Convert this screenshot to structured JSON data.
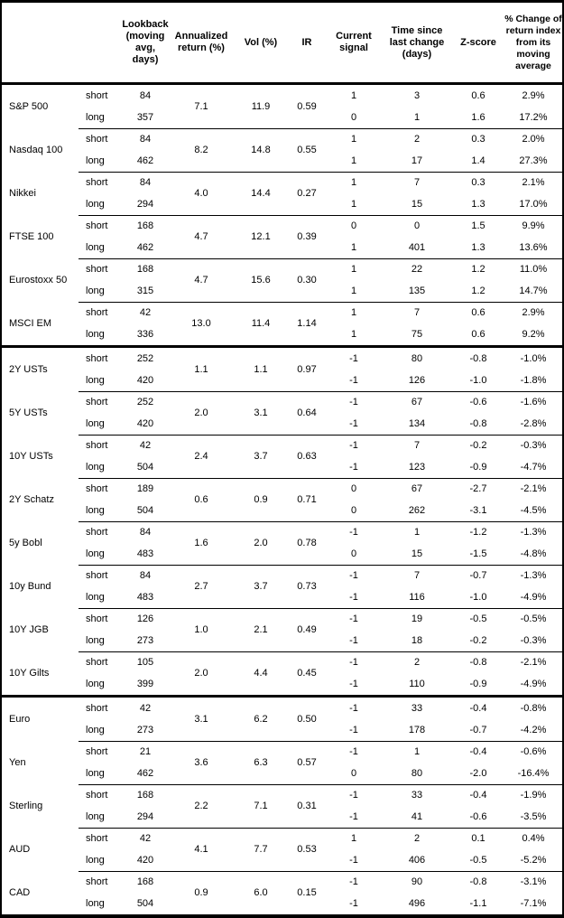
{
  "header": {
    "lookback": "Lookback (moving avg, days)",
    "annualized_return": "Annualized return (%)",
    "vol": "Vol (%)",
    "ir": "IR",
    "current_signal": "Current signal",
    "time_since": "Time since last change (days)",
    "zscore": "Z-score",
    "pct_change": "% Change of return index from its moving average"
  },
  "colors": {
    "text": "#000000",
    "background": "#ffffff",
    "lines": "#000000"
  },
  "sections": [
    {
      "assets": [
        {
          "name": "S&P 500",
          "annualized_return": "7.1",
          "vol": "11.9",
          "ir": "0.59",
          "rows": [
            {
              "period": "short",
              "lookback": "84",
              "signal": "1",
              "time_since": "3",
              "zscore": "0.6",
              "pct_change": "2.9%"
            },
            {
              "period": "long",
              "lookback": "357",
              "signal": "0",
              "time_since": "1",
              "zscore": "1.6",
              "pct_change": "17.2%"
            }
          ]
        },
        {
          "name": "Nasdaq 100",
          "annualized_return": "8.2",
          "vol": "14.8",
          "ir": "0.55",
          "rows": [
            {
              "period": "short",
              "lookback": "84",
              "signal": "1",
              "time_since": "2",
              "zscore": "0.3",
              "pct_change": "2.0%"
            },
            {
              "period": "long",
              "lookback": "462",
              "signal": "1",
              "time_since": "17",
              "zscore": "1.4",
              "pct_change": "27.3%"
            }
          ]
        },
        {
          "name": "Nikkei",
          "annualized_return": "4.0",
          "vol": "14.4",
          "ir": "0.27",
          "rows": [
            {
              "period": "short",
              "lookback": "84",
              "signal": "1",
              "time_since": "7",
              "zscore": "0.3",
              "pct_change": "2.1%"
            },
            {
              "period": "long",
              "lookback": "294",
              "signal": "1",
              "time_since": "15",
              "zscore": "1.3",
              "pct_change": "17.0%"
            }
          ]
        },
        {
          "name": "FTSE 100",
          "annualized_return": "4.7",
          "vol": "12.1",
          "ir": "0.39",
          "rows": [
            {
              "period": "short",
              "lookback": "168",
              "signal": "0",
              "time_since": "0",
              "zscore": "1.5",
              "pct_change": "9.9%"
            },
            {
              "period": "long",
              "lookback": "462",
              "signal": "1",
              "time_since": "401",
              "zscore": "1.3",
              "pct_change": "13.6%"
            }
          ]
        },
        {
          "name": "Eurostoxx 50",
          "annualized_return": "4.7",
          "vol": "15.6",
          "ir": "0.30",
          "rows": [
            {
              "period": "short",
              "lookback": "168",
              "signal": "1",
              "time_since": "22",
              "zscore": "1.2",
              "pct_change": "11.0%"
            },
            {
              "period": "long",
              "lookback": "315",
              "signal": "1",
              "time_since": "135",
              "zscore": "1.2",
              "pct_change": "14.7%"
            }
          ]
        },
        {
          "name": "MSCI EM",
          "annualized_return": "13.0",
          "vol": "11.4",
          "ir": "1.14",
          "rows": [
            {
              "period": "short",
              "lookback": "42",
              "signal": "1",
              "time_since": "7",
              "zscore": "0.6",
              "pct_change": "2.9%"
            },
            {
              "period": "long",
              "lookback": "336",
              "signal": "1",
              "time_since": "75",
              "zscore": "0.6",
              "pct_change": "9.2%"
            }
          ]
        }
      ]
    },
    {
      "assets": [
        {
          "name": "2Y USTs",
          "annualized_return": "1.1",
          "vol": "1.1",
          "ir": "0.97",
          "rows": [
            {
              "period": "short",
              "lookback": "252",
              "signal": "-1",
              "time_since": "80",
              "zscore": "-0.8",
              "pct_change": "-1.0%"
            },
            {
              "period": "long",
              "lookback": "420",
              "signal": "-1",
              "time_since": "126",
              "zscore": "-1.0",
              "pct_change": "-1.8%"
            }
          ]
        },
        {
          "name": "5Y USTs",
          "annualized_return": "2.0",
          "vol": "3.1",
          "ir": "0.64",
          "rows": [
            {
              "period": "short",
              "lookback": "252",
              "signal": "-1",
              "time_since": "67",
              "zscore": "-0.6",
              "pct_change": "-1.6%"
            },
            {
              "period": "long",
              "lookback": "420",
              "signal": "-1",
              "time_since": "134",
              "zscore": "-0.8",
              "pct_change": "-2.8%"
            }
          ]
        },
        {
          "name": "10Y USTs",
          "annualized_return": "2.4",
          "vol": "3.7",
          "ir": "0.63",
          "rows": [
            {
              "period": "short",
              "lookback": "42",
              "signal": "-1",
              "time_since": "7",
              "zscore": "-0.2",
              "pct_change": "-0.3%"
            },
            {
              "period": "long",
              "lookback": "504",
              "signal": "-1",
              "time_since": "123",
              "zscore": "-0.9",
              "pct_change": "-4.7%"
            }
          ]
        },
        {
          "name": "2Y Schatz",
          "annualized_return": "0.6",
          "vol": "0.9",
          "ir": "0.71",
          "rows": [
            {
              "period": "short",
              "lookback": "189",
              "signal": "0",
              "time_since": "67",
              "zscore": "-2.7",
              "pct_change": "-2.1%"
            },
            {
              "period": "long",
              "lookback": "504",
              "signal": "0",
              "time_since": "262",
              "zscore": "-3.1",
              "pct_change": "-4.5%"
            }
          ]
        },
        {
          "name": "5y Bobl",
          "annualized_return": "1.6",
          "vol": "2.0",
          "ir": "0.78",
          "rows": [
            {
              "period": "short",
              "lookback": "84",
              "signal": "-1",
              "time_since": "1",
              "zscore": "-1.2",
              "pct_change": "-1.3%"
            },
            {
              "period": "long",
              "lookback": "483",
              "signal": "0",
              "time_since": "15",
              "zscore": "-1.5",
              "pct_change": "-4.8%"
            }
          ]
        },
        {
          "name": "10y Bund",
          "annualized_return": "2.7",
          "vol": "3.7",
          "ir": "0.73",
          "rows": [
            {
              "period": "short",
              "lookback": "84",
              "signal": "-1",
              "time_since": "7",
              "zscore": "-0.7",
              "pct_change": "-1.3%"
            },
            {
              "period": "long",
              "lookback": "483",
              "signal": "-1",
              "time_since": "116",
              "zscore": "-1.0",
              "pct_change": "-4.9%"
            }
          ]
        },
        {
          "name": "10Y JGB",
          "annualized_return": "1.0",
          "vol": "2.1",
          "ir": "0.49",
          "rows": [
            {
              "period": "short",
              "lookback": "126",
              "signal": "-1",
              "time_since": "19",
              "zscore": "-0.5",
              "pct_change": "-0.5%"
            },
            {
              "period": "long",
              "lookback": "273",
              "signal": "-1",
              "time_since": "18",
              "zscore": "-0.2",
              "pct_change": "-0.3%"
            }
          ]
        },
        {
          "name": "10Y Gilts",
          "annualized_return": "2.0",
          "vol": "4.4",
          "ir": "0.45",
          "rows": [
            {
              "period": "short",
              "lookback": "105",
              "signal": "-1",
              "time_since": "2",
              "zscore": "-0.8",
              "pct_change": "-2.1%"
            },
            {
              "period": "long",
              "lookback": "399",
              "signal": "-1",
              "time_since": "110",
              "zscore": "-0.9",
              "pct_change": "-4.9%"
            }
          ]
        }
      ]
    },
    {
      "assets": [
        {
          "name": "Euro",
          "annualized_return": "3.1",
          "vol": "6.2",
          "ir": "0.50",
          "rows": [
            {
              "period": "short",
              "lookback": "42",
              "signal": "-1",
              "time_since": "33",
              "zscore": "-0.4",
              "pct_change": "-0.8%"
            },
            {
              "period": "long",
              "lookback": "273",
              "signal": "-1",
              "time_since": "178",
              "zscore": "-0.7",
              "pct_change": "-4.2%"
            }
          ]
        },
        {
          "name": "Yen",
          "annualized_return": "3.6",
          "vol": "6.3",
          "ir": "0.57",
          "rows": [
            {
              "period": "short",
              "lookback": "21",
              "signal": "-1",
              "time_since": "1",
              "zscore": "-0.4",
              "pct_change": "-0.6%"
            },
            {
              "period": "long",
              "lookback": "462",
              "signal": "0",
              "time_since": "80",
              "zscore": "-2.0",
              "pct_change": "-16.4%"
            }
          ]
        },
        {
          "name": "Sterling",
          "annualized_return": "2.2",
          "vol": "7.1",
          "ir": "0.31",
          "rows": [
            {
              "period": "short",
              "lookback": "168",
              "signal": "-1",
              "time_since": "33",
              "zscore": "-0.4",
              "pct_change": "-1.9%"
            },
            {
              "period": "long",
              "lookback": "294",
              "signal": "-1",
              "time_since": "41",
              "zscore": "-0.6",
              "pct_change": "-3.5%"
            }
          ]
        },
        {
          "name": "AUD",
          "annualized_return": "4.1",
          "vol": "7.7",
          "ir": "0.53",
          "rows": [
            {
              "period": "short",
              "lookback": "42",
              "signal": "1",
              "time_since": "2",
              "zscore": "0.1",
              "pct_change": "0.4%"
            },
            {
              "period": "long",
              "lookback": "420",
              "signal": "-1",
              "time_since": "406",
              "zscore": "-0.5",
              "pct_change": "-5.2%"
            }
          ]
        },
        {
          "name": "CAD",
          "annualized_return": "0.9",
          "vol": "6.0",
          "ir": "0.15",
          "rows": [
            {
              "period": "short",
              "lookback": "168",
              "signal": "-1",
              "time_since": "90",
              "zscore": "-0.8",
              "pct_change": "-3.1%"
            },
            {
              "period": "long",
              "lookback": "504",
              "signal": "-1",
              "time_since": "496",
              "zscore": "-1.1",
              "pct_change": "-7.1%"
            }
          ]
        }
      ]
    }
  ]
}
